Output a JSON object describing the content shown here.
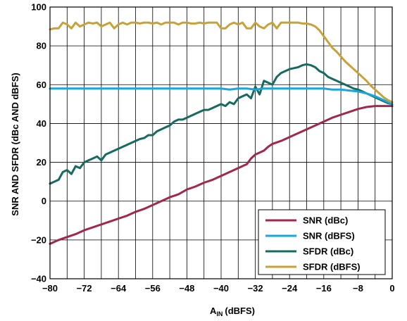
{
  "chart_data": {
    "type": "line",
    "title": "",
    "xlabel_main": "A",
    "xlabel_sub": "IN",
    "xlabel_unit": "(dBFS)",
    "ylabel": "SNR AND SFDR (dBc AND dBFS)",
    "xlim": [
      -80,
      0
    ],
    "ylim": [
      -40,
      100
    ],
    "x_ticks": [
      -80,
      -72,
      -64,
      -56,
      -48,
      -40,
      -32,
      -24,
      -16,
      -8,
      0
    ],
    "y_ticks": [
      -40,
      -20,
      0,
      20,
      40,
      60,
      80,
      100
    ],
    "x_tick_labels": [
      "−80",
      "−72",
      "−64",
      "−56",
      "−48",
      "−40",
      "−32",
      "−24",
      "−16",
      "−8",
      "0"
    ],
    "y_tick_labels": [
      "−40",
      "−20",
      "0",
      "20",
      "40",
      "60",
      "80",
      "100"
    ],
    "grid": true,
    "legend_position": "bottom-right",
    "series": [
      {
        "name": "SNR (dBc)",
        "color": "#a0284e",
        "x": [
          -80,
          -78,
          -76,
          -74,
          -72,
          -70,
          -68,
          -66,
          -64,
          -62,
          -60,
          -58,
          -56,
          -54,
          -52,
          -50,
          -48,
          -46,
          -44,
          -42,
          -40,
          -38,
          -36,
          -34,
          -33,
          -32,
          -30,
          -29,
          -28,
          -26,
          -24,
          -22,
          -20,
          -18,
          -16,
          -14,
          -12,
          -10,
          -8,
          -6,
          -4,
          -2,
          0
        ],
        "values": [
          -22,
          -20,
          -18.5,
          -17,
          -15,
          -13.5,
          -12,
          -10.5,
          -9,
          -7.5,
          -5.5,
          -4,
          -2,
          0,
          2,
          3.5,
          6,
          7.5,
          9.5,
          11,
          13,
          15,
          17,
          19,
          22,
          24,
          26,
          28,
          29.5,
          31,
          33,
          35,
          37,
          39,
          41,
          43,
          44.5,
          46,
          47.5,
          48.5,
          49,
          49,
          49
        ]
      },
      {
        "name": "SNR (dBFS)",
        "color": "#19a6de",
        "x": [
          -80,
          -78,
          -76,
          -74,
          -72,
          -70,
          -68,
          -66,
          -64,
          -62,
          -60,
          -58,
          -56,
          -54,
          -52,
          -50,
          -48,
          -46,
          -44,
          -42,
          -40,
          -38,
          -36,
          -34,
          -32,
          -30,
          -28,
          -26,
          -24,
          -22,
          -20,
          -18,
          -16,
          -14,
          -12,
          -10,
          -8,
          -6,
          -4,
          -2,
          0
        ],
        "values": [
          58,
          58,
          58,
          58,
          58,
          58,
          58,
          58,
          58,
          58,
          58,
          58,
          58,
          58,
          58,
          58,
          58,
          58,
          58,
          58,
          58,
          57.5,
          58,
          58,
          57.5,
          58,
          58,
          58,
          58,
          58,
          58,
          58,
          58,
          57.5,
          57.5,
          57,
          56.5,
          55.5,
          54,
          52,
          50
        ]
      },
      {
        "name": "SFDR (dBc)",
        "color": "#156b5e",
        "x": [
          -80,
          -79,
          -78,
          -77,
          -76,
          -75,
          -74,
          -73,
          -72,
          -71,
          -70,
          -69,
          -68,
          -67,
          -66,
          -65,
          -64,
          -63,
          -62,
          -61,
          -60,
          -59,
          -58,
          -57,
          -56,
          -55,
          -54,
          -53,
          -52,
          -51,
          -50,
          -49,
          -48,
          -47,
          -46,
          -45,
          -44,
          -43,
          -42,
          -41,
          -40,
          -39,
          -38,
          -37,
          -36,
          -35,
          -34,
          -33,
          -32,
          -31,
          -30,
          -29,
          -28,
          -27,
          -26,
          -25,
          -24,
          -23,
          -22,
          -21,
          -20,
          -19,
          -18,
          -17,
          -16,
          -15,
          -14,
          -13,
          -12,
          -11,
          -10,
          -9,
          -8,
          -7,
          -6,
          -5,
          -4,
          -3,
          -2,
          -1,
          0
        ],
        "values": [
          9,
          10,
          11,
          15,
          16,
          14,
          18,
          17,
          20,
          21,
          22,
          23,
          21,
          24,
          25,
          26,
          27,
          28,
          29,
          30,
          31,
          32,
          32.5,
          34,
          34,
          36,
          37,
          38,
          39,
          41,
          42,
          42,
          43,
          44,
          45,
          46,
          47,
          47,
          48,
          49,
          50,
          49,
          51,
          50,
          53,
          54,
          55,
          53,
          59,
          55,
          62,
          61,
          60,
          64,
          66,
          67,
          68,
          68.5,
          69,
          70,
          70.5,
          70,
          69,
          67,
          66,
          64,
          63,
          62,
          61,
          60,
          59,
          58,
          57.5,
          56.5,
          55.5,
          54.5,
          53.5,
          52.5,
          51.5,
          50.5,
          50
        ]
      },
      {
        "name": "SFDR (dBFS)",
        "color": "#c8a138",
        "x": [
          -80,
          -79,
          -78,
          -77,
          -76,
          -75,
          -74,
          -73,
          -72,
          -71,
          -70,
          -69,
          -68,
          -67,
          -66,
          -65,
          -64,
          -63,
          -62,
          -61,
          -60,
          -59,
          -58,
          -57,
          -56,
          -55,
          -54,
          -53,
          -52,
          -51,
          -50,
          -49,
          -48,
          -47,
          -46,
          -45,
          -44,
          -43,
          -42,
          -41,
          -40,
          -39,
          -38,
          -37,
          -36,
          -35,
          -34,
          -33,
          -32,
          -31,
          -30,
          -29,
          -28,
          -27,
          -26,
          -25,
          -24,
          -23,
          -22,
          -21,
          -20,
          -19,
          -18,
          -17,
          -16,
          -15,
          -14,
          -13,
          -12,
          -11,
          -10,
          -9,
          -8,
          -7,
          -6,
          -5,
          -4,
          -3,
          -2,
          -1,
          0
        ],
        "values": [
          88.5,
          89,
          89,
          92,
          91,
          89,
          92,
          90,
          91,
          92,
          91.5,
          92,
          90,
          91,
          92,
          89,
          91,
          92,
          91,
          92,
          92,
          91.5,
          92,
          92,
          91.5,
          92,
          91,
          92,
          92,
          92,
          91,
          92,
          92,
          91.5,
          91.5,
          92,
          91.5,
          92,
          92,
          92,
          89,
          89,
          91,
          92,
          91,
          92,
          89,
          89,
          92,
          90,
          89,
          91,
          92,
          89,
          92,
          92,
          92,
          92,
          92,
          91.5,
          91.5,
          91,
          90,
          88,
          85,
          82,
          79,
          77,
          74.5,
          72,
          70,
          68,
          66,
          64,
          62,
          59.5,
          57.5,
          55.5,
          53.5,
          52,
          51
        ]
      }
    ]
  }
}
